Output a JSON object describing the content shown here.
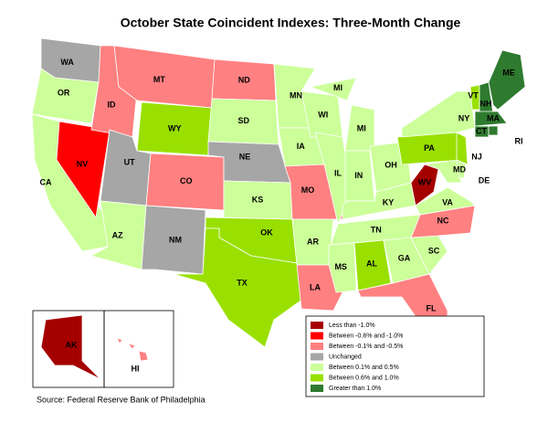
{
  "title": "October State Coincident Indexes: Three-Month Change",
  "source": "Source: Federal Reserve Bank of Philadelphia",
  "legend": [
    {
      "label": "Less than -1.0%",
      "color": "#a50000"
    },
    {
      "label": "Between -0.6% and -1.0%",
      "color": "#ff0000"
    },
    {
      "label": "Between -0.1% and -0.5%",
      "color": "#ff8080"
    },
    {
      "label": "Unchanged",
      "color": "#a6a6a6"
    },
    {
      "label": "Between 0.1% and 0.5%",
      "color": "#ccff99"
    },
    {
      "label": "Between 0.6% and 1.0%",
      "color": "#99e000"
    },
    {
      "label": "Greater than 1.0%",
      "color": "#2e7a2e"
    }
  ],
  "states": [
    {
      "label": "WA",
      "category": 3
    },
    {
      "label": "OR",
      "category": 4
    },
    {
      "label": "CA",
      "category": 4
    },
    {
      "label": "NV",
      "category": 1
    },
    {
      "label": "ID",
      "category": 2
    },
    {
      "label": "MT",
      "category": 2
    },
    {
      "label": "WY",
      "category": 5
    },
    {
      "label": "UT",
      "category": 3
    },
    {
      "label": "AZ",
      "category": 4
    },
    {
      "label": "CO",
      "category": 2
    },
    {
      "label": "NM",
      "category": 3
    },
    {
      "label": "ND",
      "category": 2
    },
    {
      "label": "SD",
      "category": 4
    },
    {
      "label": "NE",
      "category": 3
    },
    {
      "label": "KS",
      "category": 4
    },
    {
      "label": "OK",
      "category": 5
    },
    {
      "label": "TX",
      "category": 5
    },
    {
      "label": "MN",
      "category": 4
    },
    {
      "label": "IA",
      "category": 4
    },
    {
      "label": "MO",
      "category": 2
    },
    {
      "label": "AR",
      "category": 4
    },
    {
      "label": "LA",
      "category": 2
    },
    {
      "label": "WI",
      "category": 4
    },
    {
      "label": "IL",
      "category": 4
    },
    {
      "label": "MI",
      "category": 4
    },
    {
      "label": "IN",
      "category": 4
    },
    {
      "label": "OH",
      "category": 4
    },
    {
      "label": "KY",
      "category": 4
    },
    {
      "label": "TN",
      "category": 4
    },
    {
      "label": "MS",
      "category": 4
    },
    {
      "label": "AL",
      "category": 5
    },
    {
      "label": "GA",
      "category": 4
    },
    {
      "label": "FL",
      "category": 2
    },
    {
      "label": "SC",
      "category": 4
    },
    {
      "label": "NC",
      "category": 2
    },
    {
      "label": "VA",
      "category": 4
    },
    {
      "label": "WV",
      "category": 0
    },
    {
      "label": "MD",
      "category": 4
    },
    {
      "label": "PA",
      "category": 5
    },
    {
      "label": "NY",
      "category": 4
    },
    {
      "label": "NJ",
      "category": 5
    },
    {
      "label": "DE",
      "category": 4
    },
    {
      "label": "VT",
      "category": 5
    },
    {
      "label": "NH",
      "category": 6
    },
    {
      "label": "ME",
      "category": 6
    },
    {
      "label": "MA",
      "category": 6
    },
    {
      "label": "CT",
      "category": 6
    },
    {
      "label": "RI",
      "category": 6
    },
    {
      "label": "AK",
      "category": 0
    },
    {
      "label": "HI",
      "category": 2
    }
  ]
}
